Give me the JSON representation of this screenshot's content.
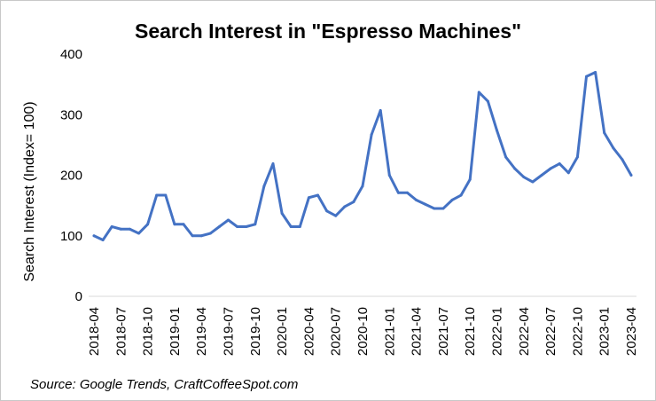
{
  "chart_data": {
    "type": "line",
    "title": "Search Interest in \"Espresso Machines\"",
    "xlabel": "",
    "ylabel": "Search Interest (Index= 100)",
    "source": "Source: Google Trends, CraftCoffeeSpot.com",
    "ylim": [
      0,
      400
    ],
    "yticks": [
      0,
      100,
      200,
      300,
      400
    ],
    "grid": false,
    "legend": "none",
    "x_tick_labels": [
      "2018-04",
      "2018-07",
      "2018-10",
      "2019-01",
      "2019-04",
      "2019-07",
      "2019-10",
      "2020-01",
      "2020-04",
      "2020-07",
      "2020-10",
      "2021-01",
      "2021-04",
      "2021-07",
      "2021-10",
      "2022-01",
      "2022-04",
      "2022-07",
      "2022-10",
      "2023-01",
      "2023-04"
    ],
    "series": [
      {
        "color": "#4472c4",
        "x": [
          "2018-04",
          "2018-05",
          "2018-06",
          "2018-07",
          "2018-08",
          "2018-09",
          "2018-10",
          "2018-11",
          "2018-12",
          "2019-01",
          "2019-02",
          "2019-03",
          "2019-04",
          "2019-05",
          "2019-06",
          "2019-07",
          "2019-08",
          "2019-09",
          "2019-10",
          "2019-11",
          "2019-12",
          "2020-01",
          "2020-02",
          "2020-03",
          "2020-04",
          "2020-05",
          "2020-06",
          "2020-07",
          "2020-08",
          "2020-09",
          "2020-10",
          "2020-11",
          "2020-12",
          "2021-01",
          "2021-02",
          "2021-03",
          "2021-04",
          "2021-05",
          "2021-06",
          "2021-07",
          "2021-08",
          "2021-09",
          "2021-10",
          "2021-11",
          "2021-12",
          "2022-01",
          "2022-02",
          "2022-03",
          "2022-04",
          "2022-05",
          "2022-06",
          "2022-07",
          "2022-08",
          "2022-09",
          "2022-10",
          "2022-11",
          "2022-12",
          "2023-01",
          "2023-02",
          "2023-03",
          "2023-04"
        ],
        "values": [
          100,
          93,
          115,
          111,
          111,
          104,
          119,
          167,
          167,
          119,
          119,
          100,
          100,
          104,
          115,
          126,
          115,
          115,
          119,
          182,
          219,
          137,
          115,
          115,
          163,
          167,
          141,
          133,
          148,
          156,
          182,
          267,
          307,
          200,
          171,
          171,
          159,
          152,
          145,
          145,
          159,
          167,
          193,
          337,
          322,
          274,
          230,
          211,
          197,
          189,
          200,
          211,
          219,
          204,
          230,
          363,
          370,
          270,
          245,
          226,
          200
        ]
      }
    ]
  }
}
